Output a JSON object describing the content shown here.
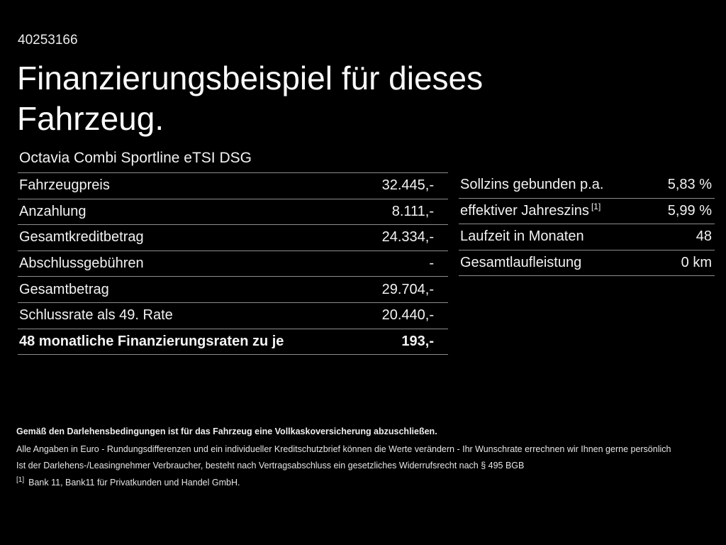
{
  "page": {
    "background_color": "#000000",
    "text_color": "#f2f2f2",
    "divider_color": "#8d8d8d"
  },
  "header": {
    "document_id": "40253166",
    "title_line1": "Finanzierungsbeispiel für dieses",
    "title_line2": "Fahrzeug.",
    "vehicle_name": "Octavia Combi Sportline eTSI DSG"
  },
  "left_table": {
    "rows": [
      {
        "label": "Fahrzeugpreis",
        "value": "32.445,-"
      },
      {
        "label": "Anzahlung",
        "value": "8.111,-"
      },
      {
        "label": "Gesamtkreditbetrag",
        "value": "24.334,-"
      },
      {
        "label": "Abschlussgebühren",
        "value": "-"
      },
      {
        "label": "Gesamtbetrag",
        "value": "29.704,-"
      },
      {
        "label": "Schlussrate als 49. Rate",
        "value": "20.440,-"
      },
      {
        "label": "48 monatliche Finanzierungsraten zu je",
        "value": "193,-",
        "bold": true
      }
    ]
  },
  "right_table": {
    "rows": [
      {
        "label": "Sollzins gebunden p.a.",
        "value": "5,83 %"
      },
      {
        "label": "effektiver Jahreszins",
        "sup": "[1]",
        "value": "5,99 %"
      },
      {
        "label": "Laufzeit in Monaten",
        "value": "48"
      },
      {
        "label": "Gesamtlaufleistung",
        "value": "0 km"
      }
    ]
  },
  "footer": {
    "insurance_note": "Gemäß den Darlehensbedingungen ist für das Fahrzeug eine Vollkaskoversicherung abzuschließen.",
    "disclaimer_line1": "Alle Angaben in Euro - Rundungsdifferenzen und ein individueller Kreditschutzbrief können die Werte verändern - Ihr Wunschrate errechnen wir Ihnen gerne persönlich",
    "disclaimer_line2": "Ist der Darlehens-/Leasingnehmer Verbraucher, besteht nach Vertragsabschluss ein gesetzliches Widerrufsrecht nach § 495 BGB",
    "footnote_marker": "[1]",
    "footnote_text": "Bank 11, Bank11 für Privatkunden und Handel GmbH."
  }
}
